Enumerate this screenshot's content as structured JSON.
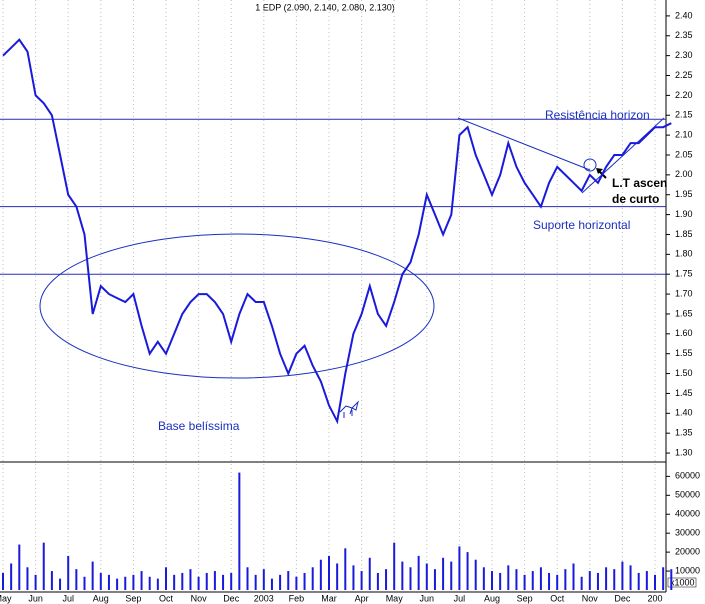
{
  "chart_data": {
    "type": "line",
    "title": "1 EDP (2.090, 2.140, 2.080, 2.130)",
    "categories": [
      "May",
      null,
      null,
      null,
      "Jun",
      null,
      null,
      null,
      "Jul",
      null,
      null,
      null,
      "Aug",
      null,
      null,
      null,
      "Sep",
      null,
      null,
      null,
      "Oct",
      null,
      null,
      null,
      "Nov",
      null,
      null,
      null,
      "Dec",
      null,
      null,
      null,
      "2003",
      null,
      null,
      null,
      "Feb",
      null,
      null,
      null,
      "Mar",
      null,
      null,
      null,
      "Apr",
      null,
      null,
      null,
      "May",
      null,
      null,
      null,
      "Jun",
      null,
      null,
      null,
      "Jul",
      null,
      null,
      null,
      "Aug",
      null,
      null,
      null,
      "Sep",
      null,
      null,
      null,
      "Oct",
      null,
      null,
      null,
      "Nov",
      null,
      null,
      null,
      "Dec",
      null,
      null,
      null,
      "200",
      null,
      null
    ],
    "series": [
      {
        "name": "EDP",
        "color": "#1a1adc",
        "values": [
          2.3,
          2.32,
          2.34,
          2.31,
          2.2,
          2.18,
          2.15,
          2.05,
          1.95,
          1.92,
          1.85,
          1.65,
          1.72,
          1.7,
          1.69,
          1.68,
          1.7,
          1.62,
          1.55,
          1.58,
          1.55,
          1.6,
          1.65,
          1.68,
          1.7,
          1.7,
          1.68,
          1.65,
          1.58,
          1.65,
          1.7,
          1.68,
          1.68,
          1.62,
          1.55,
          1.5,
          1.55,
          1.57,
          1.52,
          1.48,
          1.42,
          1.38,
          1.5,
          1.6,
          1.65,
          1.72,
          1.65,
          1.62,
          1.68,
          1.75,
          1.78,
          1.85,
          1.95,
          1.9,
          1.85,
          1.9,
          2.1,
          2.12,
          2.05,
          2.0,
          1.95,
          2.0,
          2.08,
          2.02,
          1.98,
          1.95,
          1.92,
          1.98,
          2.02,
          2.0,
          1.98,
          1.96,
          2.0,
          1.98,
          2.02,
          2.05,
          2.05,
          2.08,
          2.08,
          2.1,
          2.12,
          2.12,
          2.13
        ]
      }
    ],
    "ylim": [
      1.28,
      2.44
    ],
    "yticks": [
      {
        "value": 1.3,
        "label": "1.30"
      },
      {
        "value": 1.35,
        "label": "1.35"
      },
      {
        "value": 1.4,
        "label": "1.40"
      },
      {
        "value": 1.45,
        "label": "1.45"
      },
      {
        "value": 1.5,
        "label": "1.50"
      },
      {
        "value": 1.55,
        "label": "1.55"
      },
      {
        "value": 1.6,
        "label": "1.60"
      },
      {
        "value": 1.65,
        "label": "1.65"
      },
      {
        "value": 1.7,
        "label": "1.70"
      },
      {
        "value": 1.75,
        "label": "1.75"
      },
      {
        "value": 1.8,
        "label": "1.80"
      },
      {
        "value": 1.85,
        "label": "1.85"
      },
      {
        "value": 1.9,
        "label": "1.90"
      },
      {
        "value": 1.95,
        "label": "1.95"
      },
      {
        "value": 2.0,
        "label": "2.00"
      },
      {
        "value": 2.05,
        "label": "2.05"
      },
      {
        "value": 2.1,
        "label": "2.10"
      },
      {
        "value": 2.15,
        "label": "2.15"
      },
      {
        "value": 2.2,
        "label": "2.20"
      },
      {
        "value": 2.25,
        "label": "2.25"
      },
      {
        "value": 2.3,
        "label": "2.30"
      },
      {
        "value": 2.35,
        "label": "2.35"
      },
      {
        "value": 2.4,
        "label": "2.40"
      }
    ],
    "hlines": [
      2.14,
      1.92,
      1.75
    ],
    "volume": {
      "color": "#1a1adc",
      "values": [
        9000,
        14000,
        24000,
        12000,
        8000,
        25000,
        10000,
        6000,
        18000,
        11000,
        7000,
        15000,
        9000,
        8000,
        6000,
        7000,
        8000,
        10000,
        7000,
        6000,
        12000,
        8000,
        9000,
        11000,
        7000,
        9000,
        10000,
        8000,
        9000,
        62000,
        12000,
        8000,
        11000,
        6000,
        8000,
        10000,
        7000,
        9000,
        12000,
        16000,
        18000,
        14000,
        22000,
        13000,
        10000,
        17000,
        9000,
        11000,
        25000,
        15000,
        12000,
        18000,
        14000,
        11000,
        17000,
        15000,
        23000,
        20000,
        16000,
        12000,
        10000,
        9000,
        13000,
        11000,
        8000,
        10000,
        12000,
        9000,
        8000,
        11000,
        14000,
        7000,
        10000,
        9000,
        12000,
        11000,
        15000,
        13000,
        9000,
        10000,
        8000,
        12000,
        11000
      ],
      "ylim": [
        0,
        66000
      ],
      "yticks": [
        10000,
        20000,
        30000,
        40000,
        50000,
        60000
      ],
      "unit": "x1000"
    },
    "annotations": [
      "Resistência horizon",
      "Suporte horizontal",
      "Base belíssima",
      "L.T ascen",
      "de curto"
    ]
  }
}
